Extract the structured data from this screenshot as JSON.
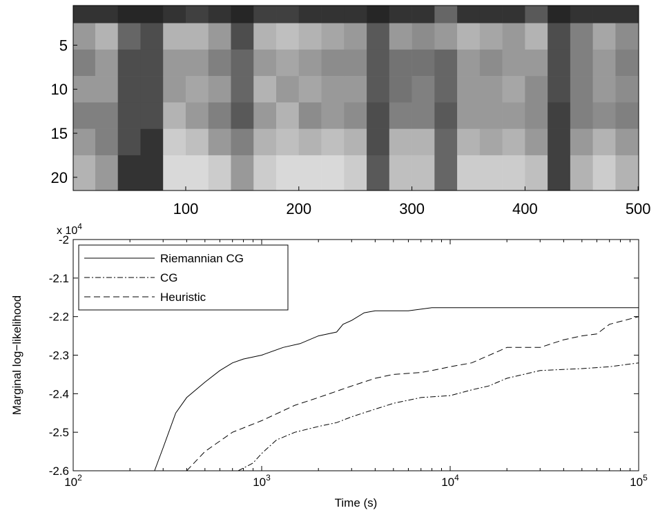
{
  "chart_data": [
    {
      "type": "heatmap",
      "colormap": "gray",
      "y_reversed": true,
      "xlim": [
        0.5,
        500.5
      ],
      "ylim": [
        0.5,
        21.5
      ],
      "xticks": [
        100,
        200,
        300,
        400,
        500
      ],
      "yticks": [
        5,
        10,
        15,
        20
      ],
      "xbins": [
        0.5,
        20,
        40,
        60,
        80,
        100,
        120,
        140,
        160,
        180,
        200,
        220,
        240,
        260,
        280,
        300,
        320,
        340,
        360,
        380,
        400,
        420,
        440,
        460,
        480,
        500.5
      ],
      "ybins": [
        0.5,
        2.5,
        5.5,
        8.5,
        11.5,
        14.5,
        17.5,
        21.5
      ],
      "values": [
        [
          0.2,
          0.6,
          0.5,
          0.6,
          0.5,
          0.6,
          0.7
        ],
        [
          0.2,
          0.7,
          0.6,
          0.6,
          0.5,
          0.5,
          0.6
        ],
        [
          0.15,
          0.4,
          0.3,
          0.3,
          0.3,
          0.3,
          0.2
        ],
        [
          0.15,
          0.3,
          0.3,
          0.3,
          0.3,
          0.2,
          0.2
        ],
        [
          0.2,
          0.7,
          0.6,
          0.6,
          0.7,
          0.8,
          0.85
        ],
        [
          0.25,
          0.7,
          0.6,
          0.65,
          0.6,
          0.75,
          0.85
        ],
        [
          0.2,
          0.6,
          0.5,
          0.6,
          0.5,
          0.6,
          0.8
        ],
        [
          0.15,
          0.3,
          0.4,
          0.4,
          0.35,
          0.5,
          0.6
        ],
        [
          0.25,
          0.7,
          0.6,
          0.7,
          0.6,
          0.7,
          0.8
        ],
        [
          0.25,
          0.75,
          0.65,
          0.6,
          0.7,
          0.75,
          0.85
        ],
        [
          0.2,
          0.7,
          0.6,
          0.65,
          0.55,
          0.7,
          0.85
        ],
        [
          0.2,
          0.65,
          0.55,
          0.6,
          0.6,
          0.75,
          0.85
        ],
        [
          0.2,
          0.6,
          0.55,
          0.6,
          0.55,
          0.7,
          0.8
        ],
        [
          0.15,
          0.35,
          0.35,
          0.35,
          0.3,
          0.3,
          0.35
        ],
        [
          0.2,
          0.6,
          0.45,
          0.45,
          0.5,
          0.7,
          0.75
        ],
        [
          0.2,
          0.55,
          0.45,
          0.5,
          0.5,
          0.7,
          0.75
        ],
        [
          0.4,
          0.6,
          0.4,
          0.4,
          0.35,
          0.4,
          0.4
        ],
        [
          0.2,
          0.7,
          0.6,
          0.6,
          0.6,
          0.7,
          0.8
        ],
        [
          0.2,
          0.65,
          0.55,
          0.6,
          0.6,
          0.65,
          0.8
        ],
        [
          0.2,
          0.6,
          0.6,
          0.65,
          0.6,
          0.7,
          0.8
        ],
        [
          0.35,
          0.7,
          0.6,
          0.55,
          0.55,
          0.6,
          0.75
        ],
        [
          0.15,
          0.3,
          0.3,
          0.3,
          0.25,
          0.25,
          0.25
        ],
        [
          0.2,
          0.5,
          0.5,
          0.5,
          0.5,
          0.6,
          0.7
        ],
        [
          0.2,
          0.65,
          0.6,
          0.6,
          0.55,
          0.7,
          0.8
        ],
        [
          0.2,
          0.55,
          0.5,
          0.55,
          0.5,
          0.6,
          0.7
        ]
      ]
    },
    {
      "type": "line",
      "xscale": "log",
      "xlabel": "Time (s)",
      "ylabel": "Marginal log−likelihood",
      "y_multiplier": {
        "label": "x 10",
        "exponent": "4"
      },
      "xlim": [
        100,
        100000
      ],
      "ylim": [
        -2.6,
        -2
      ],
      "xticks": [
        {
          "value": 100,
          "label": "10",
          "exponent": "2"
        },
        {
          "value": 1000,
          "label": "10",
          "exponent": "3"
        },
        {
          "value": 10000,
          "label": "10",
          "exponent": "4"
        },
        {
          "value": 100000,
          "label": "10",
          "exponent": "5"
        }
      ],
      "yticks": [
        -2,
        -2.1,
        -2.2,
        -2.3,
        -2.4,
        -2.5,
        -2.6
      ],
      "legend": "upper-left",
      "series": [
        {
          "name": "Riemannian CG",
          "color": "#000000",
          "linestyle": "solid",
          "x": [
            270,
            300,
            350,
            400,
            500,
            600,
            700,
            800,
            1000,
            1300,
            1600,
            2000,
            2500,
            2700,
            3000,
            3500,
            4000,
            6000,
            8000,
            10000,
            100000
          ],
          "values": [
            -2.6,
            -2.54,
            -2.45,
            -2.41,
            -2.37,
            -2.34,
            -2.32,
            -2.31,
            -2.3,
            -2.28,
            -2.27,
            -2.25,
            -2.24,
            -2.22,
            -2.21,
            -2.19,
            -2.185,
            -2.185,
            -2.177,
            -2.177,
            -2.177
          ]
        },
        {
          "name": "CG",
          "color": "#000000",
          "linestyle": "dashdot",
          "x": [
            750,
            900,
            1000,
            1200,
            1500,
            2000,
            2500,
            3000,
            4000,
            5000,
            7000,
            10000,
            13000,
            16000,
            20000,
            30000,
            50000,
            70000,
            100000
          ],
          "values": [
            -2.6,
            -2.58,
            -2.555,
            -2.52,
            -2.5,
            -2.485,
            -2.475,
            -2.46,
            -2.44,
            -2.425,
            -2.41,
            -2.405,
            -2.39,
            -2.38,
            -2.36,
            -2.34,
            -2.335,
            -2.33,
            -2.32
          ]
        },
        {
          "name": "Heuristic",
          "color": "#000000",
          "linestyle": "dashed",
          "x": [
            400,
            500,
            700,
            1000,
            1500,
            2000,
            3000,
            4000,
            5000,
            7000,
            8000,
            10000,
            13000,
            18000,
            20000,
            30000,
            40000,
            50000,
            60000,
            70000,
            100000
          ],
          "values": [
            -2.6,
            -2.55,
            -2.5,
            -2.47,
            -2.43,
            -2.41,
            -2.38,
            -2.36,
            -2.35,
            -2.345,
            -2.34,
            -2.33,
            -2.32,
            -2.29,
            -2.28,
            -2.28,
            -2.26,
            -2.25,
            -2.245,
            -2.22,
            -2.2
          ]
        }
      ]
    }
  ]
}
